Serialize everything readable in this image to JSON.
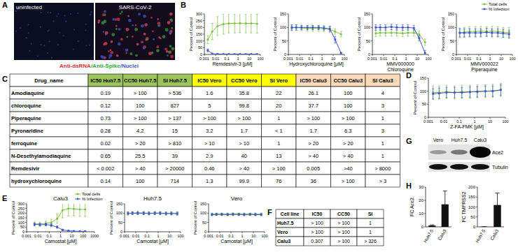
{
  "panel_labels": [
    "A",
    "B",
    "C",
    "D",
    "E",
    "F",
    "G",
    "H"
  ],
  "panel_a": {
    "images": [
      "uninfected",
      "SARS-CoV-2"
    ],
    "stain_legend": [
      {
        "text": "Anti-dsRNA",
        "color": "#e0303a"
      },
      {
        "text": "/Anti-Spike",
        "color": "#2fae3c"
      },
      {
        "text": "/Nuclei",
        "color": "#3f57c8"
      }
    ]
  },
  "chart_data": [
    {
      "type": "line",
      "x_label": [
        "Remdesivir-3 [µM]"
      ],
      "y_label": "Percent of Control",
      "log": "x",
      "x": [
        0.002,
        0.005,
        0.015,
        0.05,
        0.15,
        0.5,
        1.5,
        5,
        15,
        50
      ],
      "xlim": [
        0.001,
        100
      ],
      "xticks": [
        0.001,
        0.01,
        0.1,
        1,
        10,
        100
      ],
      "ylim": [
        0,
        300
      ],
      "yticks": [
        0,
        50,
        100,
        150,
        200,
        250,
        300
      ],
      "series": [
        {
          "name": "Total cells",
          "color": "#7cc242",
          "marker": "circle",
          "values": [
            110,
            170,
            210,
            225,
            230,
            230,
            232,
            230,
            230,
            228
          ],
          "errors": [
            30,
            60,
            70,
            75,
            70,
            70,
            70,
            70,
            70,
            70
          ]
        },
        {
          "name": "% Infection",
          "color": "#3f57c8",
          "marker": "square",
          "values": [
            30,
            5,
            3,
            2,
            2,
            2,
            2,
            2,
            2,
            2
          ],
          "errors": [
            10,
            3,
            2,
            1,
            1,
            1,
            1,
            1,
            1,
            1
          ]
        }
      ]
    },
    {
      "type": "line",
      "x_label": [
        "Hydroxychloroquine [µM]"
      ],
      "y_label": "Percent of Control",
      "log": "x",
      "x": [
        0.002,
        0.005,
        0.015,
        0.05,
        0.15,
        0.5,
        1.5,
        5,
        15,
        50
      ],
      "xlim": [
        0.001,
        100
      ],
      "xticks": [
        0.001,
        0.01,
        0.1,
        1,
        10,
        100
      ],
      "ylim": [
        0,
        150
      ],
      "yticks": [
        0,
        50,
        100,
        150
      ],
      "series": [
        {
          "name": "Total cells",
          "color": "#7cc242",
          "marker": "circle",
          "values": [
            98,
            100,
            98,
            97,
            97,
            96,
            95,
            92,
            85,
            75
          ],
          "errors": [
            10,
            10,
            10,
            10,
            10,
            10,
            10,
            10,
            10,
            10
          ]
        },
        {
          "name": "% Infection",
          "color": "#3f57c8",
          "marker": "square",
          "values": [
            100,
            100,
            100,
            100,
            100,
            100,
            98,
            95,
            55,
            5
          ],
          "errors": [
            10,
            10,
            8,
            8,
            8,
            8,
            8,
            10,
            12,
            3
          ]
        }
      ]
    },
    {
      "type": "line",
      "x_label": [
        "MMV000000",
        "Chloroquine"
      ],
      "y_label": "Percent of Control",
      "log": "x",
      "x": [
        0.002,
        0.005,
        0.015,
        0.05,
        0.15,
        0.5,
        1.5,
        5,
        15,
        50
      ],
      "xlim": [
        0.001,
        100
      ],
      "xticks": [
        0.001,
        0.01,
        0.1,
        1,
        10,
        100
      ],
      "ylim": [
        0,
        150
      ],
      "yticks": [
        0,
        50,
        100,
        150
      ],
      "series": [
        {
          "name": "Total cells",
          "color": "#7cc242",
          "marker": "circle",
          "values": [
            78,
            80,
            80,
            80,
            80,
            78,
            80,
            80,
            75,
            45
          ],
          "errors": [
            12,
            12,
            12,
            12,
            12,
            12,
            12,
            12,
            12,
            12
          ]
        },
        {
          "name": "% Infection",
          "color": "#3f57c8",
          "marker": "square",
          "values": [
            100,
            100,
            100,
            102,
            100,
            100,
            100,
            98,
            60,
            5
          ],
          "errors": [
            10,
            10,
            10,
            10,
            10,
            10,
            10,
            10,
            10,
            10
          ]
        }
      ]
    },
    {
      "type": "line",
      "x_label": [
        "MMV000022",
        "Piperaquine"
      ],
      "y_label": "Percent of Control",
      "log": "x",
      "legend": "top-right",
      "x": [
        0.002,
        0.005,
        0.015,
        0.05,
        0.15,
        0.5,
        1.5,
        5,
        15,
        50
      ],
      "xlim": [
        0.001,
        100
      ],
      "xticks": [
        0.001,
        0.01,
        0.1,
        1,
        10,
        100
      ],
      "ylim": [
        0,
        150
      ],
      "yticks": [
        0,
        50,
        100,
        150
      ],
      "series": [
        {
          "name": "Total cells",
          "color": "#7cc242",
          "marker": "circle",
          "values": [
            80,
            82,
            85,
            85,
            86,
            85,
            86,
            85,
            82,
            82
          ],
          "errors": [
            18,
            18,
            18,
            18,
            18,
            18,
            18,
            18,
            18,
            18
          ]
        },
        {
          "name": "% Infection",
          "color": "#3f57c8",
          "marker": "square",
          "values": [
            80,
            80,
            80,
            80,
            80,
            82,
            80,
            80,
            78,
            75
          ],
          "errors": [
            15,
            15,
            15,
            15,
            15,
            15,
            15,
            15,
            15,
            15
          ]
        }
      ]
    },
    {
      "type": "line",
      "x_label": [
        "Z-FA-FMK [µM]"
      ],
      "y_label": "Percent of Control",
      "log": "x",
      "x": [
        0.002,
        0.005,
        0.015,
        0.05,
        0.15,
        0.5,
        1.5,
        5,
        15,
        50
      ],
      "xlim": [
        0.001,
        100
      ],
      "xticks": [
        0.001,
        0.01,
        0.1,
        1,
        10,
        100
      ],
      "ylim": [
        0,
        150
      ],
      "yticks": [
        0,
        50,
        100,
        150
      ],
      "series": [
        {
          "name": "Total cells",
          "color": "#7cc242",
          "marker": "circle",
          "values": [
            95,
            95,
            98,
            95,
            98,
            98,
            100,
            100,
            102,
            105
          ],
          "errors": [
            25,
            25,
            25,
            25,
            25,
            25,
            25,
            25,
            25,
            25
          ]
        },
        {
          "name": "% Infection",
          "color": "#3f57c8",
          "marker": "square",
          "values": [
            90,
            92,
            95,
            95,
            95,
            97,
            98,
            100,
            100,
            105
          ],
          "errors": [
            20,
            20,
            20,
            20,
            20,
            20,
            20,
            20,
            20,
            20
          ]
        }
      ]
    },
    {
      "type": "line",
      "title": "Calu3",
      "x_label": [
        "Camostat [µM]"
      ],
      "y_label": "Percent of Control",
      "log": "x",
      "legend": "top-right",
      "x": [
        0.005,
        0.015,
        0.05,
        0.15,
        0.5,
        1.5,
        5,
        15,
        50,
        150
      ],
      "xlim": [
        0.001,
        1000
      ],
      "xticks": [
        0.001,
        0.01,
        0.1,
        1,
        10,
        100,
        1000
      ],
      "ylim": [
        0,
        300
      ],
      "yticks": [
        0,
        50,
        100,
        150,
        200,
        250,
        300
      ],
      "series": [
        {
          "name": "Total cells",
          "color": "#7cc242",
          "marker": "circle",
          "values": [
            85,
            85,
            90,
            100,
            140,
            230,
            250,
            245,
            240,
            240
          ],
          "errors": [
            20,
            20,
            25,
            30,
            50,
            80,
            80,
            75,
            75,
            75
          ]
        },
        {
          "name": "% Infection",
          "color": "#3f57c8",
          "marker": "square",
          "values": [
            80,
            75,
            78,
            70,
            50,
            20,
            10,
            7,
            5,
            5
          ],
          "errors": [
            15,
            15,
            15,
            15,
            12,
            8,
            5,
            3,
            3,
            3
          ]
        }
      ]
    },
    {
      "type": "line",
      "title": "Huh7.5",
      "x_label": [
        "Camostat [µM]"
      ],
      "y_label": "Percent of Control",
      "log": "x",
      "x": [
        0.002,
        0.005,
        0.015,
        0.05,
        0.15,
        0.5,
        1.5,
        5,
        15,
        50
      ],
      "xlim": [
        0.001,
        100
      ],
      "xticks": [
        0.001,
        0.01,
        0.1,
        1,
        10,
        100
      ],
      "ylim": [
        0,
        150
      ],
      "yticks": [
        0,
        50,
        100,
        150
      ],
      "series": [
        {
          "name": "Total cells",
          "color": "#7cc242",
          "marker": "circle",
          "values": [
            100,
            100,
            102,
            100,
            100,
            100,
            100,
            98,
            100,
            100
          ],
          "errors": [
            8,
            8,
            8,
            8,
            8,
            8,
            8,
            8,
            8,
            8
          ]
        },
        {
          "name": "% Infection",
          "color": "#3f57c8",
          "marker": "square",
          "values": [
            98,
            100,
            100,
            100,
            98,
            100,
            100,
            98,
            98,
            97
          ],
          "errors": [
            8,
            8,
            8,
            8,
            8,
            8,
            8,
            8,
            8,
            8
          ]
        }
      ]
    },
    {
      "type": "line",
      "title": "Vero",
      "x_label": [
        "Camostat [µM]"
      ],
      "y_label": "Percent of Control",
      "log": "x",
      "x": [
        0.002,
        0.005,
        0.015,
        0.05,
        0.15,
        0.5,
        1.5,
        5,
        15,
        50
      ],
      "xlim": [
        0.001,
        100
      ],
      "xticks": [
        0.001,
        0.01,
        0.1,
        1,
        10,
        100
      ],
      "ylim": [
        0,
        150
      ],
      "yticks": [
        0,
        50,
        100,
        150
      ],
      "series": [
        {
          "name": "Total cells",
          "color": "#7cc242",
          "marker": "circle",
          "values": [
            95,
            95,
            95,
            95,
            96,
            95,
            95,
            95,
            95,
            95
          ],
          "errors": [
            6,
            6,
            6,
            6,
            6,
            6,
            6,
            6,
            6,
            6
          ]
        },
        {
          "name": "% Infection",
          "color": "#3f57c8",
          "marker": "square",
          "values": [
            92,
            93,
            93,
            92,
            93,
            93,
            92,
            93,
            92,
            92
          ],
          "errors": [
            6,
            6,
            6,
            6,
            6,
            6,
            6,
            6,
            6,
            6
          ]
        }
      ]
    },
    {
      "type": "bar",
      "y_label": "FC Ace2",
      "categories": [
        "Huh7.5",
        "Calu3"
      ],
      "values": [
        1,
        17
      ],
      "errors": [
        0.5,
        10
      ],
      "color": "#111111",
      "ylim": [
        0,
        30
      ],
      "yticks": [
        0,
        10,
        20,
        30
      ]
    },
    {
      "type": "bar",
      "y_label": "FC TMPRSS2",
      "categories": [
        "Huh7.5",
        "Calu3"
      ],
      "values": [
        1,
        110
      ],
      "errors": [
        0.5,
        60
      ],
      "color": "#111111",
      "ylim": [
        0,
        200
      ],
      "yticks": [
        0,
        50,
        100,
        150,
        200
      ]
    }
  ],
  "table_c": {
    "header": [
      "Drug_name",
      "IC50 Huh7.5",
      "CC50 Huh7.5",
      "SI Huh7.5",
      "IC50 Vero",
      "CC50 Vero",
      "SI  Vero",
      "IC50 Calu3",
      "CC50 Calu3",
      "SI Calu3"
    ],
    "header_colors": [
      "#ffffff",
      "#9bc45a",
      "#9bc45a",
      "#9bc45a",
      "#ffff00",
      "#ffff00",
      "#ffff00",
      "#fcd9b8",
      "#fcd9b8",
      "#fcd9b8"
    ],
    "rows": [
      [
        "Amodiaquine",
        "0.19",
        "> 100",
        "> 536",
        "1.6",
        "35.8",
        "22",
        "26.1",
        "100",
        "4"
      ],
      [
        "chloroquine",
        "0.12",
        "100",
        "827",
        "5",
        "99.8",
        "20",
        "37.7",
        "100",
        "3"
      ],
      [
        "Piperaquine",
        "0.73",
        "> 100",
        "> 137",
        "> 100",
        "> 100",
        "1",
        "> 100",
        "> 100",
        "1"
      ],
      [
        "Pyronaridine",
        "0.28",
        "4.2",
        "15",
        "3.2",
        "1.7",
        "< 1",
        "1.7",
        "6.3",
        "3"
      ],
      [
        "ferroquine",
        "0.02",
        "> 20",
        "> 810",
        "> 10",
        "> 10",
        "1",
        "> 20",
        "> 20",
        "1"
      ],
      [
        "N-Desethylamodiaquine",
        "0.65",
        "25.5",
        "39",
        "2.9",
        "40",
        "13",
        "> 40",
        "> 40",
        "1"
      ],
      [
        "Remdesivir",
        "< 0.002",
        "> 40",
        "> 20000",
        "0.46",
        "> 40",
        "> 100",
        "0.005",
        ">40",
        "> 8000"
      ],
      [
        "hydroxychloroquine",
        "0.14",
        "100",
        "714",
        "1.3",
        "99.9",
        "76",
        "36",
        "> 100",
        "> 3"
      ]
    ]
  },
  "table_f": {
    "header": [
      "Cell line",
      "IC50",
      "CC50",
      "SI"
    ],
    "rows": [
      [
        "Huh7.5",
        "> 100",
        "> 100",
        "1"
      ],
      [
        "Vero",
        "> 100",
        "> 100",
        "1"
      ],
      [
        "Calu3",
        "0.307",
        "> 100",
        "> 326"
      ]
    ]
  },
  "panel_g": {
    "lanes": [
      "Vero",
      "Huh7.5",
      "Calu3"
    ],
    "proteins": [
      "Ace2",
      "Tubulin"
    ]
  }
}
